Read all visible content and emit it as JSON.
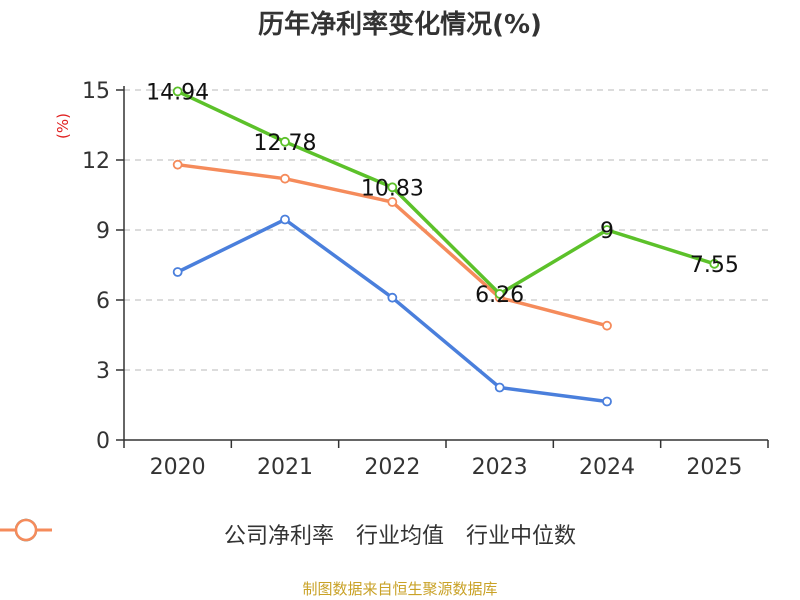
{
  "chart_data": {
    "type": "line",
    "title": "历年净利率变化情况(%)",
    "ylabel": "(%)",
    "xlabel": "",
    "categories": [
      "2020",
      "2021",
      "2022",
      "2023",
      "2024",
      "2025"
    ],
    "ylim": [
      0,
      15
    ],
    "yticks": [
      0,
      3,
      6,
      9,
      12,
      15
    ],
    "grid": "horizontal dashed",
    "legend_position": "bottom",
    "series": [
      {
        "name": "公司净利率",
        "color": "#5cc12a",
        "values": [
          14.94,
          12.78,
          10.83,
          6.26,
          9,
          7.55
        ],
        "labels": [
          "14.94",
          "12.78",
          "10.83",
          "6.26",
          "9",
          "7.55"
        ]
      },
      {
        "name": "行业均值",
        "color": "#4a7fdc",
        "values": [
          7.2,
          9.45,
          6.1,
          2.25,
          1.65,
          null
        ]
      },
      {
        "name": "行业中位数",
        "color": "#f58b5b",
        "values": [
          11.8,
          11.2,
          10.2,
          6.1,
          4.9,
          null
        ]
      }
    ]
  },
  "source": "制图数据来自恒生聚源数据库"
}
